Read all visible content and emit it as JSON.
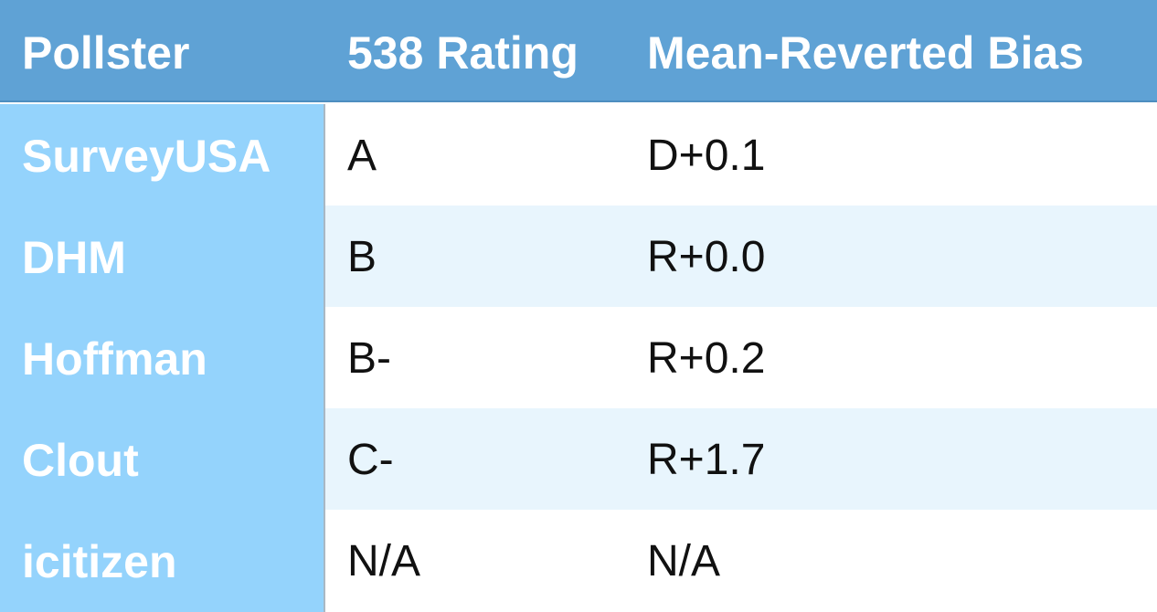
{
  "header": {
    "pollster": "Pollster",
    "rating": "538 Rating",
    "bias": "Mean-Reverted Bias"
  },
  "rows": [
    {
      "pollster": "SurveyUSA",
      "rating": "A",
      "bias": "D+0.1"
    },
    {
      "pollster": "DHM",
      "rating": "B",
      "bias": "R+0.0"
    },
    {
      "pollster": "Hoffman",
      "rating": "B-",
      "bias": "R+0.2"
    },
    {
      "pollster": "Clout",
      "rating": "C-",
      "bias": "R+1.7"
    },
    {
      "pollster": "icitizen",
      "rating": "N/A",
      "bias": "N/A"
    }
  ],
  "colors": {
    "header_bg": "#5fa2d5",
    "first_column_bg": "#94d3fc",
    "alt_row_bg": "#e8f5fd"
  }
}
